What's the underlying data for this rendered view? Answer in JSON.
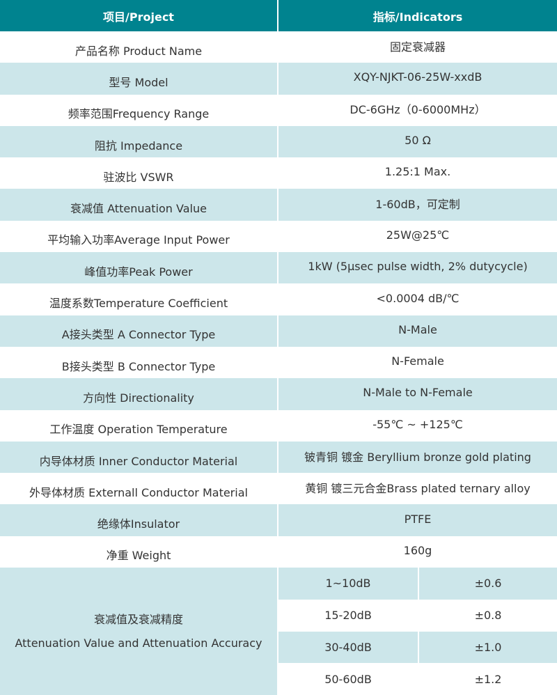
{
  "header": {
    "project": "项目/Project",
    "indicators": "指标/Indicators"
  },
  "colors": {
    "header_bg": "#00838f",
    "alt_row_bg": "#cce6ea",
    "text": "#333333"
  },
  "rows": [
    {
      "label": "产品名称 Product Name",
      "value": "固定衰减器"
    },
    {
      "label": "型号 Model",
      "value": "XQY-NJKT-06-25W-xxdB"
    },
    {
      "label": "频率范围Frequency Range",
      "value": "DC-6GHz（0-6000MHz）"
    },
    {
      "label": "阻抗 Impedance",
      "value": "50 Ω"
    },
    {
      "label": "驻波比 VSWR",
      "value": "1.25:1 Max."
    },
    {
      "label": "衰减值 Attenuation Value",
      "value": "1-60dB，可定制"
    },
    {
      "label": "平均输入功率Average Input Power",
      "value": "25W@25℃"
    },
    {
      "label": "峰值功率Peak Power",
      "value": "1kW (5μsec pulse width, 2% dutycycle)"
    },
    {
      "label": "温度系数Temperature Coefficient",
      "value": "<0.0004 dB/℃"
    },
    {
      "label": "A接头类型 A Connector Type",
      "value": "N-Male"
    },
    {
      "label": "B接头类型 B Connector Type",
      "value": "N-Female"
    },
    {
      "label": "方向性 Directionality",
      "value": "N-Male to N-Female"
    },
    {
      "label": "工作温度 Operation Temperature",
      "value": "-55℃ ~ +125℃"
    },
    {
      "label": "内导体材质 Inner Conductor Material",
      "value": "铍青铜 镀金 Beryllium bronze gold plating"
    },
    {
      "label": "外导体材质 Externall Conductor Material",
      "value": "黄铜 镀三元合金Brass plated ternary alloy"
    },
    {
      "label": "绝缘体Insulator",
      "value": "PTFE"
    },
    {
      "label": "净重 Weight",
      "value": "160g"
    }
  ],
  "accuracy": {
    "label_cn": "衰减值及衰减精度",
    "label_en": "Attenuation Value and Attenuation Accuracy",
    "rows": [
      {
        "range": "1~10dB",
        "accuracy": "±0.6"
      },
      {
        "range": "15-20dB",
        "accuracy": "±0.8"
      },
      {
        "range": "30-40dB",
        "accuracy": "±1.0"
      },
      {
        "range": "50-60dB",
        "accuracy": "±1.2"
      }
    ]
  }
}
